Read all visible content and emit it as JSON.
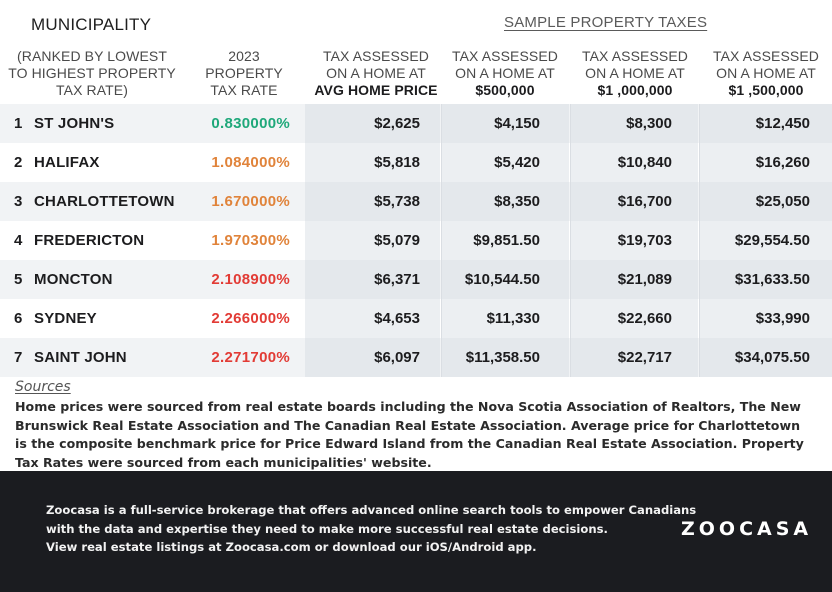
{
  "header": {
    "title": "MUNICIPALITY",
    "sample_title": "SAMPLE PROPERTY TAXES"
  },
  "columns": {
    "municipality": [
      "(RANKED BY LOWEST",
      "TO HIGHEST PROPERTY",
      "TAX RATE)"
    ],
    "rate": [
      "2023",
      "PROPERTY",
      "TAX RATE"
    ],
    "avg": {
      "line1": "TAX ASSESSED",
      "line2": "ON A HOME AT",
      "bold": "AVG HOME PRICE"
    },
    "p500": {
      "line1": "TAX ASSESSED",
      "line2": "ON A HOME AT",
      "bold": "$500,000"
    },
    "p1m": {
      "line1": "TAX ASSESSED",
      "line2": "ON A HOME AT",
      "bold": "$1 ,000,000"
    },
    "p15m": {
      "line1": "TAX ASSESSED",
      "line2": "ON A HOME AT",
      "bold": "$1 ,500,000"
    }
  },
  "colors": {
    "green": "#1fa87a",
    "orange": "#e0833a",
    "red": "#e23b35"
  },
  "rows": [
    {
      "rank": "1",
      "name": "ST JOHN'S",
      "rate": "0.830000%",
      "rate_color": "green",
      "avg": "$2,625",
      "p500": "$4,150",
      "p1m": "$8,300",
      "p15m": "$12,450"
    },
    {
      "rank": "2",
      "name": "HALIFAX",
      "rate": "1.084000%",
      "rate_color": "orange",
      "avg": "$5,818",
      "p500": "$5,420",
      "p1m": "$10,840",
      "p15m": "$16,260"
    },
    {
      "rank": "3",
      "name": "CHARLOTTETOWN",
      "rate": "1.670000%",
      "rate_color": "orange",
      "avg": "$5,738",
      "p500": "$8,350",
      "p1m": "$16,700",
      "p15m": "$25,050"
    },
    {
      "rank": "4",
      "name": "FREDERICTON",
      "rate": "1.970300%",
      "rate_color": "orange",
      "avg": "$5,079",
      "p500": "$9,851.50",
      "p1m": "$19,703",
      "p15m": "$29,554.50"
    },
    {
      "rank": "5",
      "name": "MONCTON",
      "rate": "2.108900%",
      "rate_color": "red",
      "avg": "$6,371",
      "p500": "$10,544.50",
      "p1m": "$21,089",
      "p15m": "$31,633.50"
    },
    {
      "rank": "6",
      "name": "SYDNEY",
      "rate": "2.266000%",
      "rate_color": "red",
      "avg": "$4,653",
      "p500": "$11,330",
      "p1m": "$22,660",
      "p15m": "$33,990"
    },
    {
      "rank": "7",
      "name": "SAINT JOHN",
      "rate": "2.271700%",
      "rate_color": "red",
      "avg": "$6,097",
      "p500": "$11,358.50",
      "p1m": "$22,717",
      "p15m": "$34,075.50"
    }
  ],
  "sources": {
    "label": "Sources",
    "text": "Home prices were sourced from real estate boards including the Nova Scotia Association of Realtors, The New Brunswick Real Estate Association and The Canadian Real Estate Association. Average price for Charlottetown is the composite benchmark price for Price Edward Island from the Canadian Real Estate Association. Property Tax Rates were sourced from each municipalities' website."
  },
  "footer": {
    "lines": [
      "Zoocasa is a full-service brokerage that offers advanced online search tools to empower Canadians",
      "with the data and expertise they need to make more successful real estate decisions.",
      "View real estate listings at Zoocasa.com or download our iOS/Android app."
    ],
    "logo": "ZOOCASA"
  }
}
